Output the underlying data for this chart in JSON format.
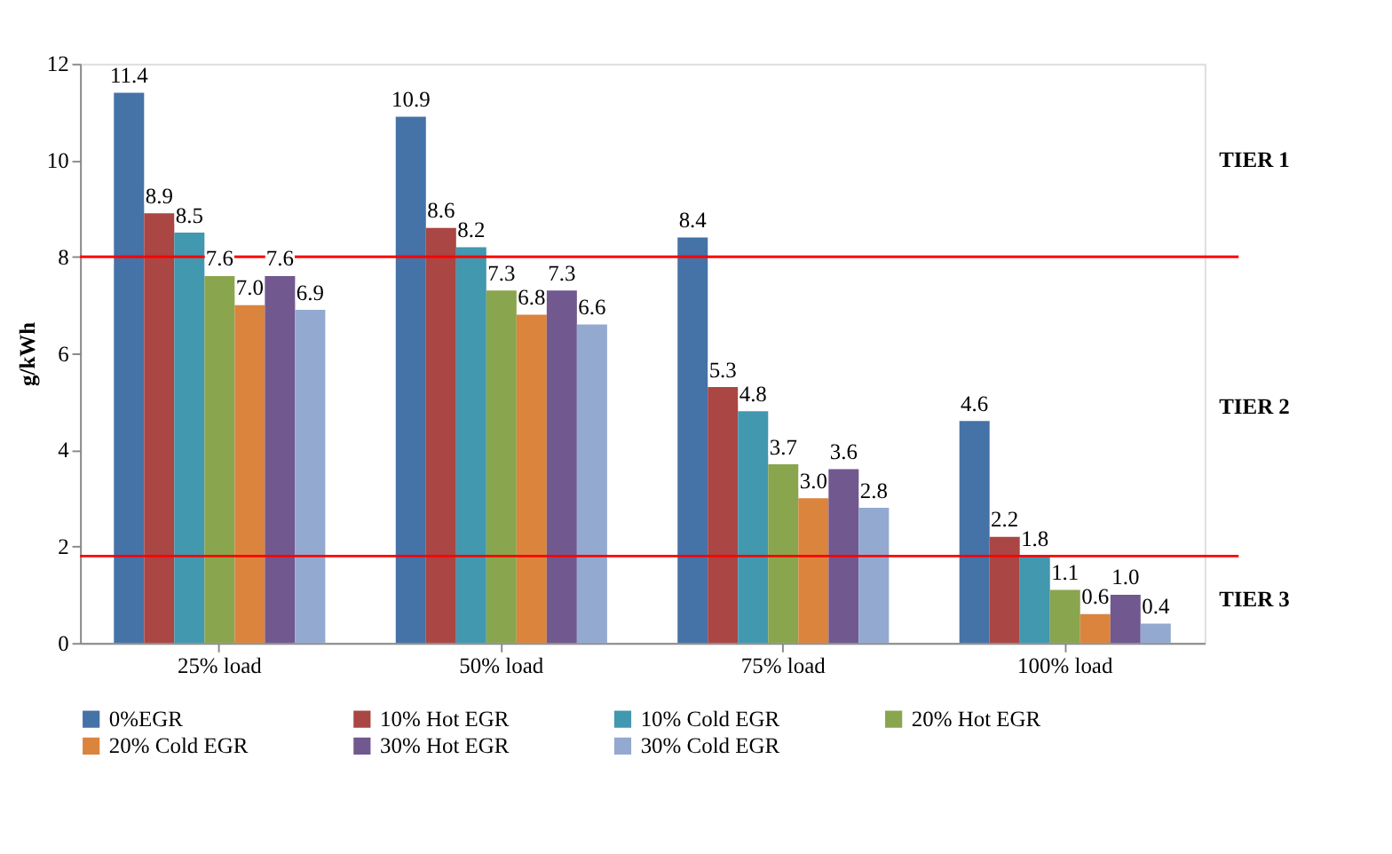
{
  "chart_data": {
    "type": "bar",
    "ylabel": "g/kWh",
    "categories": [
      "25% load",
      "50% load",
      "75% load",
      "100% load"
    ],
    "series": [
      {
        "name": "0%EGR",
        "color": "#4572a7",
        "values": [
          11.4,
          10.9,
          8.4,
          4.6
        ],
        "value_labels": [
          "11.4",
          "10.9",
          "8.4",
          "4.6"
        ]
      },
      {
        "name": "10% Hot EGR",
        "color": "#aa4643",
        "values": [
          8.9,
          8.6,
          5.3,
          2.2
        ],
        "value_labels": [
          "8.9",
          "8.6",
          "5.3",
          "2.2"
        ]
      },
      {
        "name": "10% Cold EGR",
        "color": "#4198af",
        "values": [
          8.5,
          8.2,
          4.8,
          1.8
        ],
        "value_labels": [
          "8.5",
          "8.2",
          "4.8",
          "1.8"
        ]
      },
      {
        "name": "20% Hot EGR",
        "color": "#89a54e",
        "values": [
          7.6,
          7.3,
          3.7,
          1.1
        ],
        "value_labels": [
          "7.6",
          "7.3",
          "3.7",
          "1.1"
        ]
      },
      {
        "name": "20% Cold EGR",
        "color": "#db843d",
        "values": [
          7.0,
          6.8,
          3.0,
          0.6
        ],
        "value_labels": [
          "7.0",
          "6.8",
          "3.0",
          "0.6"
        ]
      },
      {
        "name": "30% Hot EGR",
        "color": "#71588f",
        "values": [
          7.6,
          7.3,
          3.6,
          1.0
        ],
        "value_labels": [
          "7.6",
          "7.3",
          "3.6",
          "1.0"
        ]
      },
      {
        "name": "30% Cold EGR",
        "color": "#93a9cf",
        "values": [
          6.9,
          6.6,
          2.8,
          0.4
        ],
        "value_labels": [
          "6.9",
          "6.6",
          "2.8",
          "0.4"
        ]
      }
    ],
    "ylim": [
      0,
      12
    ],
    "yticks": [
      0,
      2,
      4,
      6,
      8,
      10,
      12
    ],
    "grid": false,
    "legend": "bottom",
    "ref_lines": [
      {
        "axis": "y",
        "value": 8,
        "color": "#ff0000"
      },
      {
        "axis": "y",
        "value": 1.8,
        "color": "#ff0000"
      }
    ],
    "annotations": [
      "TIER 1",
      "TIER 2",
      "TIER 3"
    ]
  }
}
